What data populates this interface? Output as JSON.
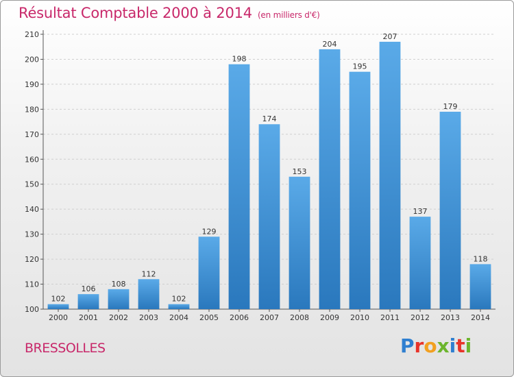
{
  "header": {
    "title": "Résultat Comptable 2000 à 2014",
    "unit": "(en milliers d'€)"
  },
  "footer": {
    "commune": "BRESSOLLES",
    "logo": {
      "letters": [
        "P",
        "r",
        "o",
        "x",
        "i",
        "t",
        "i"
      ],
      "colors": [
        "#2f7fd0",
        "#e8342a",
        "#f2a020",
        "#6cb52d",
        "#2f7fd0",
        "#e8342a",
        "#6cb52d"
      ]
    }
  },
  "chart_data": {
    "type": "bar",
    "title": "Résultat Comptable 2000 à 2014",
    "xlabel": "",
    "ylabel": "",
    "ylim": [
      100,
      210
    ],
    "yticks": [
      100,
      110,
      120,
      130,
      140,
      150,
      160,
      170,
      180,
      190,
      200,
      210
    ],
    "grid": true,
    "categories": [
      "2000",
      "2001",
      "2002",
      "2003",
      "2004",
      "2005",
      "2006",
      "2007",
      "2008",
      "2009",
      "2010",
      "2011",
      "2012",
      "2013",
      "2014"
    ],
    "values": [
      102,
      106,
      108,
      112,
      102,
      129,
      198,
      174,
      153,
      204,
      195,
      207,
      137,
      179,
      118
    ],
    "bar_color": "#3f8fd6"
  }
}
